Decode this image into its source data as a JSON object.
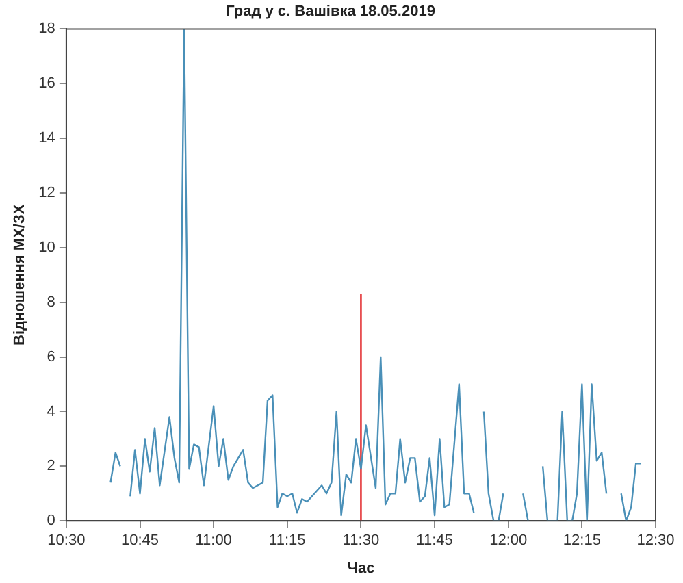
{
  "chart_data": {
    "type": "line",
    "title": "Град у с. Вашівка 18.05.2019",
    "xlabel": "Час",
    "ylabel": "Відношення МХ/ЗХ",
    "xlim": [
      10.5,
      12.5
    ],
    "xticks": [
      {
        "value": 10.5,
        "label": "10:30"
      },
      {
        "value": 10.75,
        "label": "10:45"
      },
      {
        "value": 11,
        "label": "11:00"
      },
      {
        "value": 11.25,
        "label": "11:15"
      },
      {
        "value": 11.5,
        "label": "11:30"
      },
      {
        "value": 11.75,
        "label": "11:45"
      },
      {
        "value": 12,
        "label": "12:00"
      },
      {
        "value": 12.25,
        "label": "12:15"
      },
      {
        "value": 12.5,
        "label": "12:30"
      }
    ],
    "ylim": [
      0,
      18
    ],
    "yticks": [
      0,
      2,
      4,
      6,
      8,
      10,
      12,
      14,
      16,
      18
    ],
    "grid": false,
    "legend": false,
    "marker": "none",
    "line_style": "solid",
    "series": [
      {
        "color": "#4a90b8",
        "x": [
          10.65,
          10.667,
          10.683,
          10.7,
          10.717,
          10.733,
          10.75,
          10.767,
          10.783,
          10.8,
          10.817,
          10.85,
          10.867,
          10.883,
          10.9,
          10.917,
          10.933,
          10.95,
          10.967,
          11.0,
          11.017,
          11.033,
          11.05,
          11.067,
          11.1,
          11.117,
          11.133,
          11.167,
          11.183,
          11.2,
          11.217,
          11.233,
          11.25,
          11.267,
          11.283,
          11.3,
          11.317,
          11.367,
          11.383,
          11.4,
          11.417,
          11.433,
          11.45,
          11.467,
          11.483,
          11.5,
          11.517,
          11.55,
          11.567,
          11.583,
          11.6,
          11.617,
          11.633,
          11.65,
          11.667,
          11.683,
          11.7,
          11.717,
          11.733,
          11.75,
          11.767,
          11.783,
          11.8,
          11.833,
          11.85,
          11.867,
          11.883,
          11.9,
          11.917,
          11.933,
          11.95,
          11.967,
          11.983,
          12.0,
          12.05,
          12.067,
          12.083,
          12.117,
          12.133,
          12.167,
          12.183,
          12.2,
          12.217,
          12.233,
          12.25,
          12.267,
          12.283,
          12.3,
          12.317,
          12.333,
          12.35,
          12.383,
          12.4,
          12.417,
          12.433,
          12.45
        ],
        "values": [
          1.4,
          2.5,
          2.0,
          null,
          0.9,
          2.6,
          1.0,
          3.0,
          1.8,
          3.4,
          1.3,
          3.8,
          2.3,
          1.4,
          18,
          1.9,
          2.8,
          2.7,
          1.3,
          4.2,
          2.0,
          3.0,
          1.5,
          2.0,
          2.6,
          1.4,
          1.2,
          1.4,
          4.4,
          4.6,
          0.5,
          1.0,
          0.9,
          1.0,
          0.3,
          0.8,
          0.7,
          1.3,
          1.0,
          1.4,
          4.0,
          0.2,
          1.7,
          1.4,
          3.0,
          1.9,
          3.5,
          1.2,
          6.0,
          0.6,
          1.0,
          1.0,
          3.0,
          1.4,
          2.3,
          2.3,
          0.7,
          0.9,
          2.3,
          0.2,
          3.0,
          0.5,
          0.6,
          5.0,
          1.0,
          1.0,
          0.3,
          null,
          4.0,
          1.0,
          0,
          0,
          1.0,
          null,
          1.0,
          0,
          null,
          2.0,
          0,
          0,
          4.0,
          0,
          0,
          1.0,
          5.0,
          0,
          5.0,
          2.2,
          2.5,
          1.0,
          null,
          1.0,
          0,
          0.5,
          2.1,
          2.1
        ]
      },
      {
        "color": "#e0191c",
        "x": [
          11.5,
          11.5
        ],
        "values": [
          0,
          8.3
        ]
      }
    ]
  }
}
